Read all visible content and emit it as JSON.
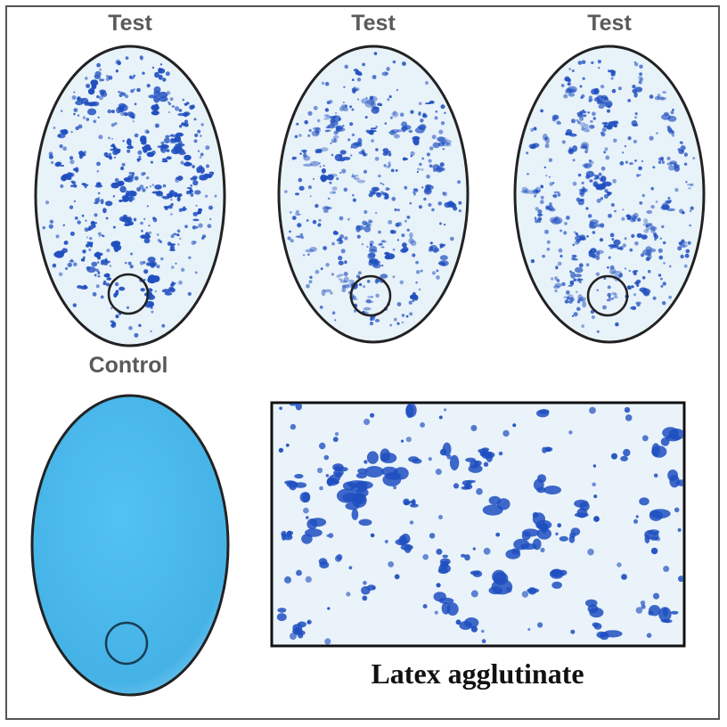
{
  "labels": {
    "test_1": "Test",
    "test_2": "Test",
    "test_3": "Test",
    "control": "Control"
  },
  "caption": "Latex agglutinate",
  "colors": {
    "slide_background": "#e6f1f8",
    "agglutinate": "#1f4fbf",
    "control_fill": "#4db8ea",
    "outline": "#222222"
  }
}
